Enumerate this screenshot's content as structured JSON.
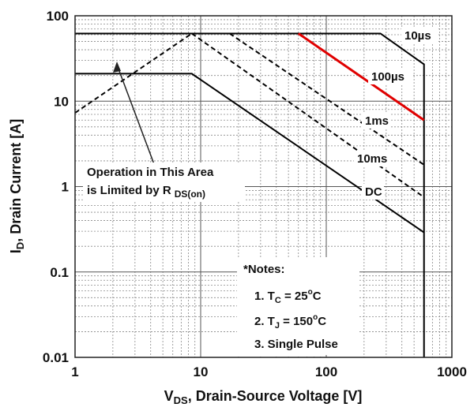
{
  "chart_data": {
    "type": "line",
    "log_x": true,
    "log_y": true,
    "grid": true,
    "xlabel": {
      "main": "V",
      "sub": "DS",
      "rest": ", Drain-Source Voltage [V]"
    },
    "ylabel": {
      "main": "I",
      "sub": "D",
      "rest": ", Drain Current [A]"
    },
    "xlim": [
      1,
      1000
    ],
    "ylim": [
      0.01,
      100
    ],
    "xticks": [
      1,
      10,
      100,
      1000
    ],
    "yticks": [
      0.01,
      0.1,
      1,
      10,
      100
    ],
    "series": [
      {
        "color": "#000000",
        "dashed": true,
        "x": [
          1,
          8.5
        ],
        "values": [
          7.3,
          62
        ]
      },
      {
        "name": "10µs",
        "color": "#000000",
        "dashed": false,
        "x": [
          1,
          270,
          600,
          600
        ],
        "values": [
          62,
          62,
          27,
          0.01
        ]
      },
      {
        "name": "100µs",
        "color": "#e00000",
        "dashed": false,
        "x": [
          60,
          600
        ],
        "values": [
          62,
          6
        ]
      },
      {
        "name": "1ms",
        "color": "#000000",
        "dashed": true,
        "x": [
          17,
          600
        ],
        "values": [
          62,
          1.8
        ]
      },
      {
        "name": "10ms",
        "color": "#000000",
        "dashed": true,
        "x": [
          8.5,
          600
        ],
        "values": [
          62,
          0.75
        ]
      },
      {
        "name": "DC",
        "color": "#000000",
        "dashed": false,
        "x": [
          1,
          8.5,
          600
        ],
        "values": [
          21,
          21,
          0.29
        ]
      }
    ],
    "annotation": {
      "line1": "Operation in This Area",
      "line2": "is Limited by R",
      "sub": "DS(on)"
    },
    "notes": {
      "title": "*Notes:",
      "n1": {
        "a": "1. T",
        "sub": "C",
        "b": " = 25",
        "sup": "o",
        "c": "C"
      },
      "n2": {
        "a": "2. T",
        "sub": "J",
        "b": " = 150",
        "sup": "o",
        "c": "C"
      },
      "n3": "3. Single Pulse"
    }
  }
}
